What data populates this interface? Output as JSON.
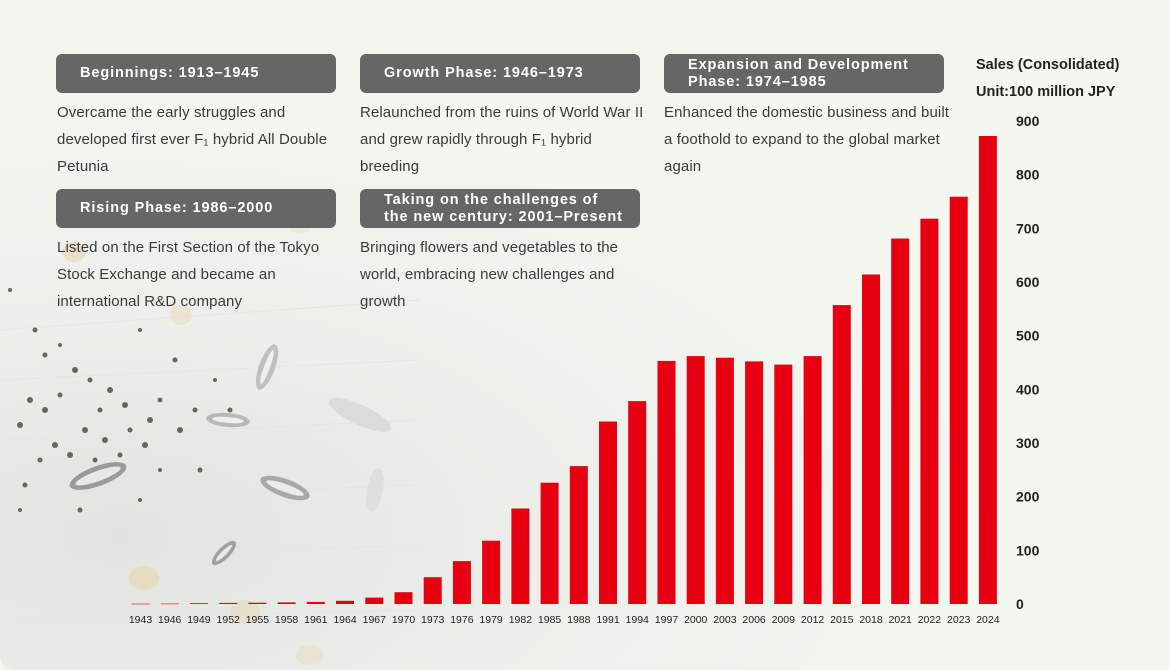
{
  "phases": [
    {
      "title": "Beginnings: 1913–1945",
      "description": "Overcame the early struggles and developed first ever F₁ hybrid All Double Petunia"
    },
    {
      "title": "Growth Phase: 1946–1973",
      "description": "Relaunched from the ruins of World War II and grew rapidly through F₁ hybrid breeding"
    },
    {
      "title_line1": "Expansion and Development",
      "title_line2": "Phase: 1974–1985",
      "description": "Enhanced the domestic business and built a foothold to expand to the global market again"
    },
    {
      "title": "Rising Phase: 1986–2000",
      "description": "Listed on the First Section of the Tokyo Stock Exchange and became an international R&D company"
    },
    {
      "title_line1": "Taking on the challenges of",
      "title_line2": "the new century: 2001–Present",
      "description": "Bringing flowers and vegetables to the world, embracing new challenges and growth"
    }
  ],
  "sales_label": {
    "line1": "Sales (Consolidated)",
    "line2": "Unit:100 million JPY"
  },
  "colors": {
    "bar": "#e60012",
    "header": "#666666"
  },
  "chart_data": {
    "type": "bar",
    "ylabel": "Sales (Consolidated)",
    "unit": "Unit:100 million JPY",
    "ylim": [
      0,
      900
    ],
    "yticks": [
      0,
      100,
      200,
      300,
      400,
      500,
      600,
      700,
      800,
      900
    ],
    "y_axis_position": "right",
    "grid": false,
    "categories": [
      "1943",
      "1946",
      "1949",
      "1952",
      "1955",
      "1958",
      "1961",
      "1964",
      "1967",
      "1970",
      "1973",
      "1976",
      "1979",
      "1982",
      "1985",
      "1988",
      "1991",
      "1994",
      "1997",
      "2000",
      "2003",
      "2006",
      "2009",
      "2012",
      "2015",
      "2018",
      "2021",
      "2022",
      "2023",
      "2024"
    ],
    "values": [
      0.5,
      0.8,
      1.5,
      2,
      2.5,
      3,
      4,
      6,
      12,
      22,
      50,
      80,
      118,
      178,
      226,
      257,
      340,
      378,
      453,
      462,
      459,
      452,
      446,
      462,
      557,
      614,
      681,
      718,
      759,
      872
    ]
  }
}
